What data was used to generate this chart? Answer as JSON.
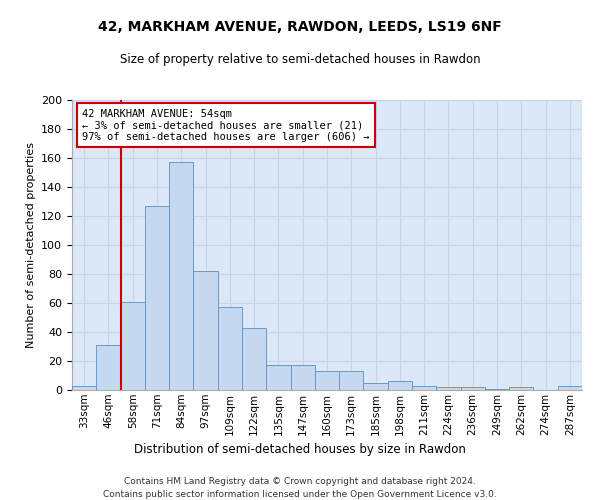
{
  "title": "42, MARKHAM AVENUE, RAWDON, LEEDS, LS19 6NF",
  "subtitle": "Size of property relative to semi-detached houses in Rawdon",
  "xlabel": "Distribution of semi-detached houses by size in Rawdon",
  "ylabel": "Number of semi-detached properties",
  "categories": [
    "33sqm",
    "46sqm",
    "58sqm",
    "71sqm",
    "84sqm",
    "97sqm",
    "109sqm",
    "122sqm",
    "135sqm",
    "147sqm",
    "160sqm",
    "173sqm",
    "185sqm",
    "198sqm",
    "211sqm",
    "224sqm",
    "236sqm",
    "249sqm",
    "262sqm",
    "274sqm",
    "287sqm"
  ],
  "values": [
    3,
    31,
    61,
    127,
    157,
    82,
    57,
    43,
    17,
    17,
    13,
    13,
    5,
    6,
    3,
    2,
    2,
    1,
    2,
    0,
    3
  ],
  "bar_color": "#c5d8f0",
  "bar_edge_color": "#6699cc",
  "highlight_line_color": "#cc0000",
  "annotation_line1": "42 MARKHAM AVENUE: 54sqm",
  "annotation_line2": "← 3% of semi-detached houses are smaller (21)",
  "annotation_line3": "97% of semi-detached houses are larger (606) →",
  "annotation_box_color": "#cc0000",
  "ylim": [
    0,
    200
  ],
  "yticks": [
    0,
    20,
    40,
    60,
    80,
    100,
    120,
    140,
    160,
    180,
    200
  ],
  "grid_color": "#c8d4e8",
  "bg_color": "#dce8f8",
  "footer1": "Contains HM Land Registry data © Crown copyright and database right 2024.",
  "footer2": "Contains public sector information licensed under the Open Government Licence v3.0.",
  "red_line_index": 2
}
